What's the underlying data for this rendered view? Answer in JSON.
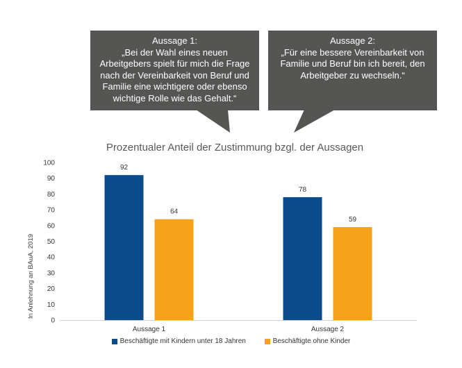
{
  "callouts": [
    {
      "title": "Aussage 1:",
      "text": "„Bei der Wahl eines neuen\nArbeitgebers spielt für mich die Frage\nnach der Vereinbarkeit von Beruf und\nFamilie eine wichtigere oder ebenso\nwichtige Rolle wie das Gehalt.“"
    },
    {
      "title": "Aussage 2:",
      "text": "„Für eine bessere Vereinbarkeit von\nFamilie und Beruf bin ich bereit, den\nArbeitgeber zu wechseln.“"
    }
  ],
  "colors": {
    "callout_bg": "#555553",
    "series_1": "#0B4C8C",
    "series_2": "#F5A21A"
  },
  "chart_data": {
    "type": "bar",
    "title": "Prozentualer Anteil der Zustimmung bzgl. der Aussagen",
    "ylabel": "In Anlehnung an BAuA, 2019",
    "xlabel": "",
    "categories": [
      "Aussage 1",
      "Aussage 2"
    ],
    "series": [
      {
        "name": "Beschäftigte mit Kindern unter 18 Jahren",
        "values": [
          92,
          78
        ]
      },
      {
        "name": "Beschäftigte ohne Kinder",
        "values": [
          64,
          59
        ]
      }
    ],
    "ylim": [
      0,
      100
    ],
    "yticks": [
      0,
      10,
      20,
      30,
      40,
      50,
      60,
      70,
      80,
      90,
      100
    ],
    "grid": false,
    "legend_position": "bottom"
  }
}
